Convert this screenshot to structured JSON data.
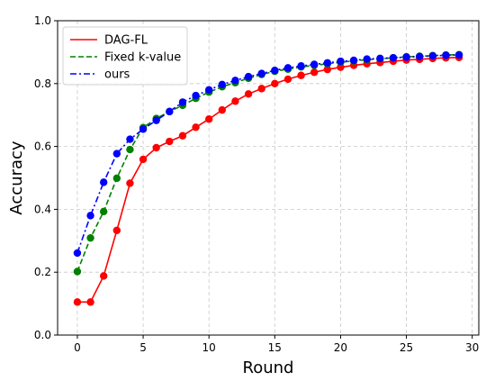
{
  "chart_data": {
    "type": "line",
    "title": "",
    "xlabel": "Round",
    "ylabel": "Accuracy",
    "xlim": [
      -1.5,
      30.5
    ],
    "ylim": [
      0,
      1.0
    ],
    "xticks": [
      0,
      5,
      10,
      15,
      20,
      25,
      30
    ],
    "yticks": [
      0.0,
      0.2,
      0.4,
      0.6,
      0.8,
      1.0
    ],
    "xtick_labels": [
      "0",
      "5",
      "10",
      "15",
      "20",
      "25",
      "30"
    ],
    "ytick_labels": [
      "0.0",
      "0.2",
      "0.4",
      "0.6",
      "0.8",
      "1.0"
    ],
    "grid": true,
    "legend_position": "top-left",
    "x": [
      0,
      1,
      2,
      3,
      4,
      5,
      6,
      7,
      8,
      9,
      10,
      11,
      12,
      13,
      14,
      15,
      16,
      17,
      18,
      19,
      20,
      21,
      22,
      23,
      24,
      25,
      26,
      27,
      28,
      29
    ],
    "series": [
      {
        "name": "DAG-FL",
        "color": "#ff0000",
        "linestyle": "solid",
        "marker_color": "#ff0000",
        "values": [
          0.105,
          0.105,
          0.188,
          0.333,
          0.483,
          0.559,
          0.596,
          0.616,
          0.634,
          0.661,
          0.687,
          0.716,
          0.744,
          0.767,
          0.784,
          0.8,
          0.814,
          0.826,
          0.836,
          0.845,
          0.852,
          0.858,
          0.863,
          0.867,
          0.871,
          0.875,
          0.877,
          0.88,
          0.882,
          0.883
        ]
      },
      {
        "name": "Fixed k-value",
        "color": "#008000",
        "linestyle": "dashed",
        "marker_color": "#008000",
        "values": [
          0.202,
          0.309,
          0.393,
          0.499,
          0.59,
          0.66,
          0.689,
          0.711,
          0.731,
          0.753,
          0.773,
          0.79,
          0.803,
          0.817,
          0.829,
          0.839,
          0.846,
          0.853,
          0.858,
          0.863,
          0.868,
          0.872,
          0.876,
          0.879,
          0.882,
          0.885,
          0.887,
          0.889,
          0.891,
          0.892
        ]
      },
      {
        "name": "ours",
        "color": "#0000ff",
        "linestyle": "dashdot",
        "marker_color": "#0000ff",
        "values": [
          0.261,
          0.38,
          0.486,
          0.577,
          0.623,
          0.655,
          0.683,
          0.711,
          0.741,
          0.762,
          0.78,
          0.797,
          0.81,
          0.822,
          0.832,
          0.842,
          0.85,
          0.856,
          0.861,
          0.866,
          0.871,
          0.874,
          0.878,
          0.88,
          0.882,
          0.884,
          0.886,
          0.888,
          0.89,
          0.891
        ]
      }
    ]
  }
}
